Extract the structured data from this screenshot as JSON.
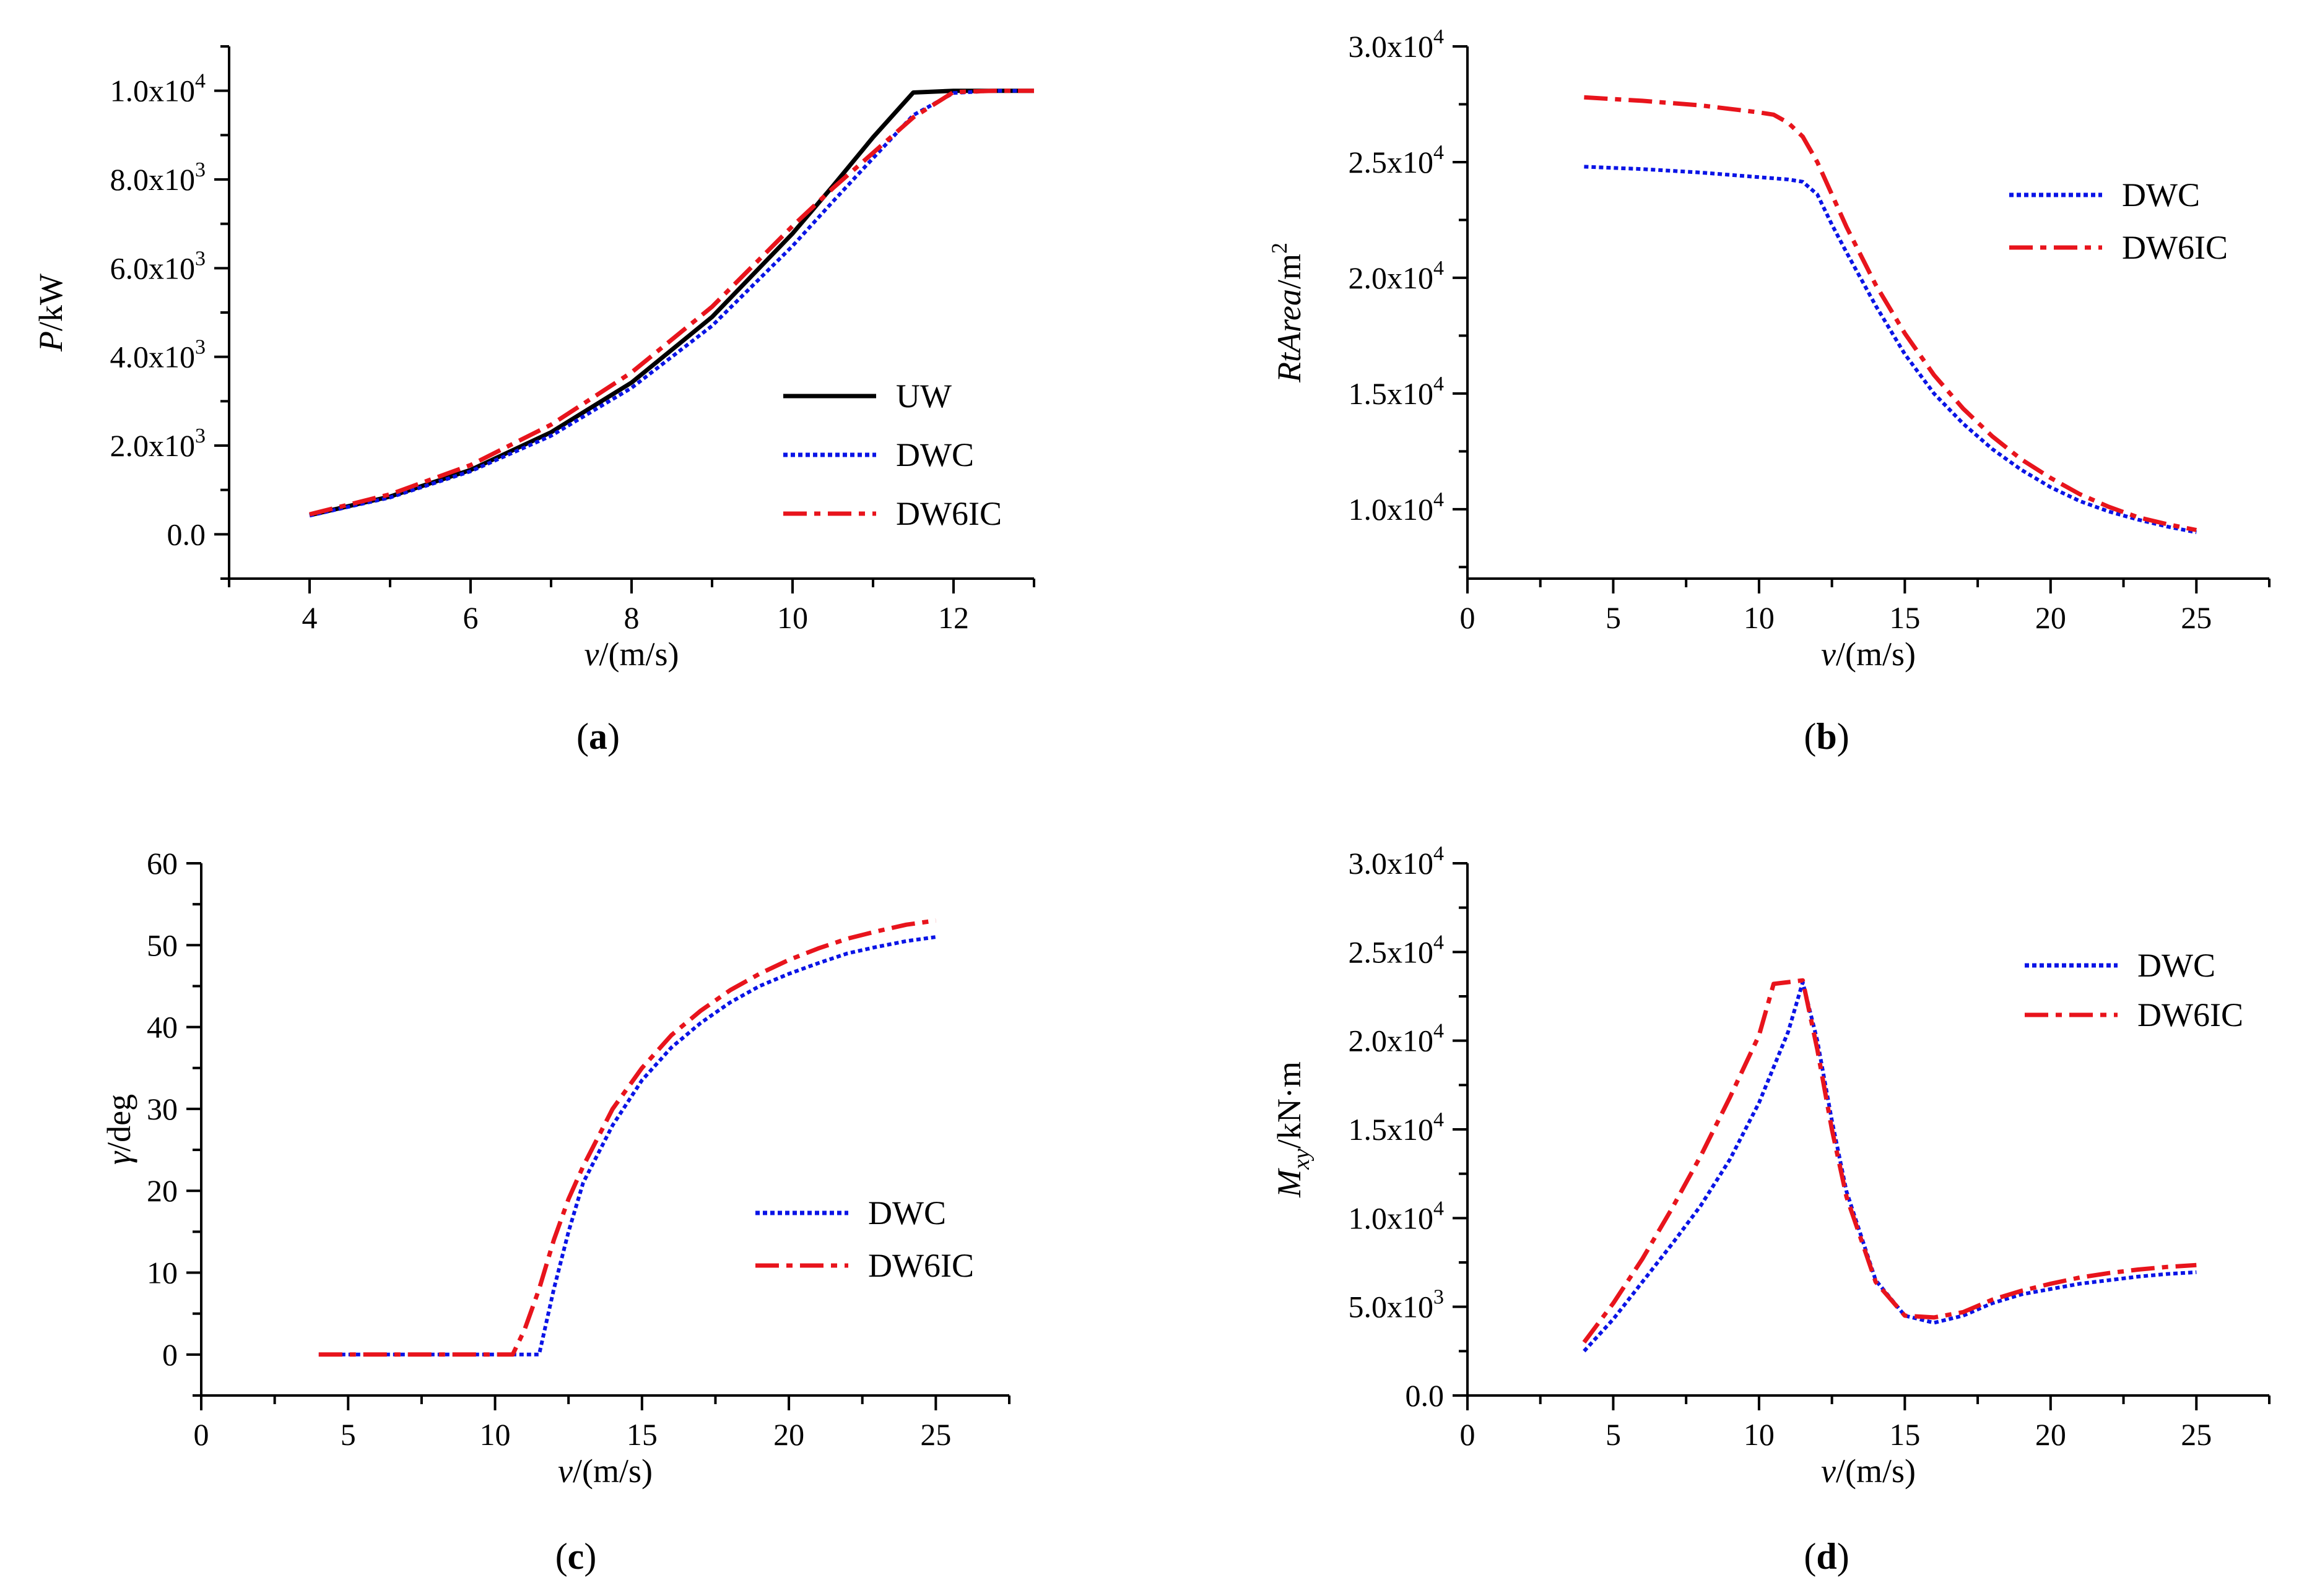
{
  "colors": {
    "uw": "#000000",
    "dwc": "#0a14e6",
    "dw6ic": "#e8141c",
    "axis": "#000000"
  },
  "chart_data": [
    {
      "panel": "a",
      "type": "line",
      "caption": {
        "open": "(",
        "letter": "a",
        "close": ")"
      },
      "xlabel": {
        "italic": "v",
        "rest": "/(m/s)"
      },
      "ylabel": {
        "italic": "P",
        "rest": "/kW"
      },
      "xlim": [
        3,
        13
      ],
      "ylim": [
        -1000,
        11000
      ],
      "xticks": [
        "4",
        "6",
        "8",
        "10",
        "12"
      ],
      "yticks": [
        {
          "mant": "0.0",
          "exp": ""
        },
        {
          "mant": "2.0x10",
          "exp": "3"
        },
        {
          "mant": "4.0x10",
          "exp": "3"
        },
        {
          "mant": "6.0x10",
          "exp": "3"
        },
        {
          "mant": "8.0x10",
          "exp": "3"
        },
        {
          "mant": "1.0x10",
          "exp": "4"
        }
      ],
      "legend": {
        "position": "bottom-right",
        "entries": [
          "UW",
          "DWC",
          "DW6IC"
        ]
      },
      "series": [
        {
          "name": "UW",
          "style": "solid",
          "x": [
            4,
            5,
            6,
            7,
            8,
            9,
            10,
            10.5,
            11,
            11.5,
            12,
            12.5,
            13
          ],
          "y": [
            430,
            850,
            1450,
            2300,
            3420,
            4900,
            6780,
            7850,
            8950,
            9960,
            10000,
            10000,
            10000
          ]
        },
        {
          "name": "DWC",
          "style": "dotted",
          "x": [
            4,
            5,
            6,
            7,
            8,
            9,
            10,
            10.5,
            11,
            11.5,
            12,
            12.5,
            13
          ],
          "y": [
            420,
            830,
            1420,
            2220,
            3300,
            4700,
            6500,
            7500,
            8480,
            9450,
            9950,
            10000,
            10000
          ]
        },
        {
          "name": "DW6IC",
          "style": "dashdot",
          "x": [
            4,
            5,
            6,
            7,
            8,
            9,
            10,
            10.5,
            11,
            11.5,
            12,
            12.5,
            13
          ],
          "y": [
            450,
            900,
            1560,
            2470,
            3650,
            5130,
            6950,
            7800,
            8600,
            9400,
            9970,
            10000,
            10000
          ]
        }
      ]
    },
    {
      "panel": "b",
      "type": "line",
      "caption": {
        "open": "(",
        "letter": "b",
        "close": ")"
      },
      "xlabel": {
        "italic": "v",
        "rest": "/(m/s)"
      },
      "ylabel": {
        "italic": "RtArea",
        "rest": "/m",
        "sup": "2"
      },
      "xlim": [
        0,
        27.5
      ],
      "ylim": [
        7000,
        30000
      ],
      "xticks": [
        "0",
        "5",
        "10",
        "15",
        "20",
        "25"
      ],
      "yticks": [
        {
          "mant": "1.0x10",
          "exp": "4"
        },
        {
          "mant": "1.5x10",
          "exp": "4"
        },
        {
          "mant": "2.0x10",
          "exp": "4"
        },
        {
          "mant": "2.5x10",
          "exp": "4"
        },
        {
          "mant": "3.0x10",
          "exp": "4"
        }
      ],
      "legend": {
        "position": "top-right",
        "entries": [
          "DWC",
          "DW6IC"
        ]
      },
      "series": [
        {
          "name": "DWC",
          "style": "dotted",
          "x": [
            4,
            6,
            8,
            10,
            11,
            11.5,
            12,
            12.5,
            13,
            14,
            15,
            16,
            17,
            18,
            19,
            20,
            21,
            22,
            23,
            24,
            25
          ],
          "y": [
            24800,
            24700,
            24550,
            24350,
            24250,
            24150,
            23600,
            22300,
            21100,
            18800,
            16700,
            15000,
            13700,
            12600,
            11700,
            10950,
            10350,
            9900,
            9550,
            9250,
            9000
          ]
        },
        {
          "name": "DW6IC",
          "style": "dashdot",
          "x": [
            4,
            6,
            8,
            10,
            10.5,
            11,
            11.5,
            12,
            12.5,
            13,
            14,
            15,
            16,
            17,
            18,
            19,
            20,
            21,
            22,
            23,
            24,
            25
          ],
          "y": [
            27800,
            27650,
            27450,
            27150,
            27050,
            26700,
            26100,
            25000,
            23600,
            22200,
            19700,
            17600,
            15800,
            14350,
            13150,
            12150,
            11350,
            10650,
            10100,
            9650,
            9350,
            9100
          ]
        }
      ]
    },
    {
      "panel": "c",
      "type": "line",
      "caption": {
        "open": "(",
        "letter": "c",
        "close": ")"
      },
      "xlabel": {
        "italic": "v",
        "rest": "/(m/s)"
      },
      "ylabel": {
        "italic": "γ",
        "rest": "/deg"
      },
      "xlim": [
        0,
        27.5
      ],
      "ylim": [
        -5,
        60
      ],
      "xticks": [
        "0",
        "5",
        "10",
        "15",
        "20",
        "25"
      ],
      "yticks": [
        {
          "mant": "0",
          "exp": ""
        },
        {
          "mant": "10",
          "exp": ""
        },
        {
          "mant": "20",
          "exp": ""
        },
        {
          "mant": "30",
          "exp": ""
        },
        {
          "mant": "40",
          "exp": ""
        },
        {
          "mant": "50",
          "exp": ""
        },
        {
          "mant": "60",
          "exp": ""
        }
      ],
      "legend": {
        "position": "right",
        "entries": [
          "DWC",
          "DW6IC"
        ]
      },
      "series": [
        {
          "name": "DWC",
          "style": "dotted",
          "x": [
            4,
            8,
            11.5,
            12,
            12.5,
            13,
            14,
            15,
            16,
            17,
            18,
            19,
            20,
            21,
            22,
            23,
            24,
            25
          ],
          "y": [
            0,
            0,
            0,
            8,
            15,
            21,
            28,
            33.5,
            37.5,
            40.5,
            43,
            45,
            46.5,
            47.8,
            49,
            49.8,
            50.5,
            51
          ]
        },
        {
          "name": "DW6IC",
          "style": "dashdot",
          "x": [
            4,
            8,
            10.6,
            11,
            11.5,
            12,
            12.5,
            13,
            14,
            15,
            16,
            17,
            18,
            19,
            20,
            21,
            22,
            23,
            24,
            25
          ],
          "y": [
            0,
            0,
            0,
            3,
            8,
            14,
            19,
            23,
            30,
            35,
            39,
            42,
            44.5,
            46.5,
            48.2,
            49.6,
            50.8,
            51.7,
            52.5,
            53
          ]
        }
      ]
    },
    {
      "panel": "d",
      "type": "line",
      "caption": {
        "open": "(",
        "letter": "d",
        "close": ")"
      },
      "xlabel": {
        "italic": "v",
        "rest": "/(m/s)"
      },
      "ylabel": {
        "italic": "M",
        "sub": "xy",
        "rest": "/kN·m"
      },
      "xlim": [
        0,
        27.5
      ],
      "ylim": [
        0,
        30000
      ],
      "xticks": [
        "0",
        "5",
        "10",
        "15",
        "20",
        "25"
      ],
      "yticks": [
        {
          "mant": "0.0",
          "exp": ""
        },
        {
          "mant": "5.0x10",
          "exp": "3"
        },
        {
          "mant": "1.0x10",
          "exp": "4"
        },
        {
          "mant": "1.5x10",
          "exp": "4"
        },
        {
          "mant": "2.0x10",
          "exp": "4"
        },
        {
          "mant": "2.5x10",
          "exp": "4"
        },
        {
          "mant": "3.0x10",
          "exp": "4"
        }
      ],
      "legend": {
        "position": "top-right",
        "entries": [
          "DWC",
          "DW6IC"
        ]
      },
      "series": [
        {
          "name": "DWC",
          "style": "dotted",
          "x": [
            4,
            5,
            6,
            7,
            8,
            9,
            10,
            11,
            11.5,
            12,
            12.5,
            13,
            14,
            15,
            16,
            17,
            18,
            19,
            20,
            21,
            22,
            23,
            24,
            25
          ],
          "y": [
            2500,
            4300,
            6400,
            8500,
            10700,
            13300,
            16500,
            20500,
            23300,
            20000,
            15500,
            11500,
            6500,
            4500,
            4100,
            4500,
            5200,
            5700,
            6000,
            6300,
            6500,
            6700,
            6850,
            6950
          ]
        },
        {
          "name": "DW6IC",
          "style": "dashdot",
          "x": [
            4,
            5,
            6,
            7,
            8,
            9,
            10,
            10.5,
            11.5,
            12,
            12.5,
            13,
            14,
            15,
            16,
            17,
            18,
            19,
            20,
            21,
            22,
            23,
            24,
            25
          ],
          "y": [
            3000,
            5200,
            7700,
            10500,
            13500,
            16800,
            20300,
            23200,
            23400,
            19500,
            15000,
            11200,
            6400,
            4500,
            4400,
            4700,
            5400,
            5900,
            6300,
            6650,
            6900,
            7100,
            7250,
            7350
          ]
        }
      ]
    }
  ]
}
